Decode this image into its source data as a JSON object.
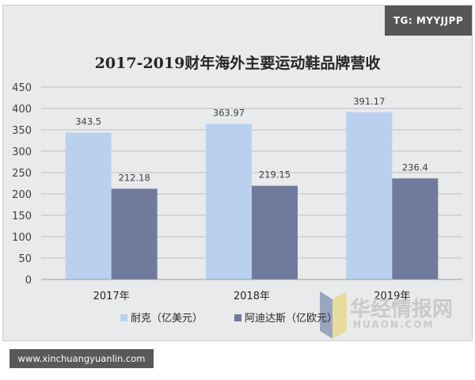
{
  "badge": {
    "text": "TG: MYYJJPP"
  },
  "footer": {
    "text": "www.xinchuangyuanlin.com"
  },
  "watermark": {
    "cn": "华经情报网",
    "en": "HUAON.COM"
  },
  "colors": {
    "nike": "#b9d1ef",
    "adidas": "#6f7a9c",
    "grid": "#bfbfbf",
    "frame_bg": "#e9eaeb"
  },
  "chart_data": {
    "type": "bar",
    "title": "2017-2019财年海外主要运动鞋品牌营收",
    "categories": [
      "2017年",
      "2018年",
      "2019年"
    ],
    "series": [
      {
        "name": "耐克（亿美元）",
        "values": [
          343.5,
          363.97,
          391.17
        ],
        "labels": [
          "343.5",
          "363.97",
          "391.17"
        ]
      },
      {
        "name": "阿迪达斯（亿欧元）",
        "values": [
          212.18,
          219.15,
          236.4
        ],
        "labels": [
          "212.18",
          "219.15",
          "236.4"
        ]
      }
    ],
    "ylim": [
      0,
      450
    ],
    "yticks": [
      "0",
      "50",
      "100",
      "150",
      "200",
      "250",
      "300",
      "350",
      "400",
      "450"
    ],
    "grid": true,
    "legend_position": "bottom"
  }
}
